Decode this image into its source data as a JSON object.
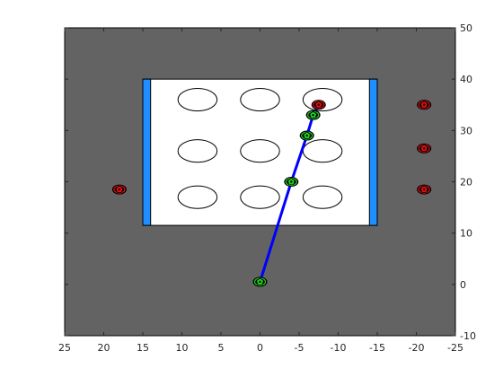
{
  "chart_data": {
    "type": "scatter",
    "title": "",
    "xlabel": "",
    "ylabel": "",
    "xlim": [
      25,
      -25
    ],
    "ylim": [
      -10,
      50
    ],
    "x_reversed": true,
    "y_axis_location": "right",
    "grid": false,
    "legend": "none",
    "xticks": [
      "25",
      "20",
      "15",
      "10",
      "5",
      "0",
      "-5",
      "-10",
      "-15",
      "-20",
      "-25"
    ],
    "yticks": [
      "-10",
      "0",
      "10",
      "20",
      "30",
      "40",
      "50"
    ],
    "colors": {
      "field": "#636363",
      "board": "#ffffff",
      "goal_bar": "#1f8fff",
      "path": "#0000ff",
      "waypoint": "#22cc22",
      "obstacle": "#dd1111",
      "outline": "#000000"
    },
    "field_region": {
      "x": [
        25,
        -25
      ],
      "y": [
        -10,
        50
      ]
    },
    "board_region": {
      "x": [
        15,
        -15
      ],
      "y": [
        11.5,
        40
      ]
    },
    "goal_bars": [
      {
        "x": [
          15,
          14
        ],
        "y": [
          11.5,
          40
        ]
      },
      {
        "x": [
          -14,
          -15
        ],
        "y": [
          11.5,
          40
        ]
      }
    ],
    "holes": [
      {
        "x": 8,
        "y": 36,
        "rx": 2.5,
        "ry": 2.2
      },
      {
        "x": 0,
        "y": 36,
        "rx": 2.5,
        "ry": 2.2
      },
      {
        "x": -8,
        "y": 36,
        "rx": 2.5,
        "ry": 2.2
      },
      {
        "x": 8,
        "y": 26,
        "rx": 2.5,
        "ry": 2.2
      },
      {
        "x": 0,
        "y": 26,
        "rx": 2.5,
        "ry": 2.2
      },
      {
        "x": -8,
        "y": 26,
        "rx": 2.5,
        "ry": 2.2
      },
      {
        "x": 8,
        "y": 17,
        "rx": 2.5,
        "ry": 2.2
      },
      {
        "x": 0,
        "y": 17,
        "rx": 2.5,
        "ry": 2.2
      },
      {
        "x": -8,
        "y": 17,
        "rx": 2.5,
        "ry": 2.2
      }
    ],
    "series": [
      {
        "kind": "path",
        "x": [
          0,
          -4,
          -6,
          -6.8,
          -7.5
        ],
        "y": [
          0.5,
          20,
          29,
          33,
          35
        ]
      },
      {
        "kind": "waypoints",
        "x": [
          0,
          -4,
          -6,
          -6.8
        ],
        "y": [
          0.5,
          20,
          29,
          33
        ]
      },
      {
        "kind": "obstacles",
        "x": [
          18,
          -7.5,
          -21,
          -21,
          -21
        ],
        "y": [
          18.5,
          35,
          35,
          26.5,
          18.5
        ]
      }
    ]
  }
}
